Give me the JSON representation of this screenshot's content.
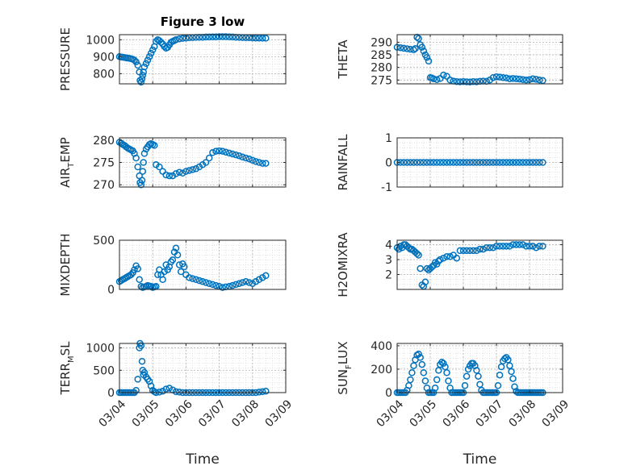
{
  "chart_data": [
    {
      "type": "scatter",
      "id": "pressure",
      "title": "Figure 3 low",
      "ylabel": "PRESSURE",
      "ylim": [
        740,
        1030
      ],
      "yticks": [
        800,
        900,
        1000
      ],
      "x": [
        0.0,
        0.05,
        0.1,
        0.15,
        0.2,
        0.25,
        0.3,
        0.35,
        0.4,
        0.45,
        0.5,
        0.55,
        0.6,
        0.62,
        0.65,
        0.68,
        0.7,
        0.72,
        0.75,
        0.8,
        0.85,
        0.9,
        0.95,
        1.0,
        1.05,
        1.1,
        1.15,
        1.2,
        1.25,
        1.3,
        1.35,
        1.4,
        1.45,
        1.5,
        1.55,
        1.6,
        1.65,
        1.7,
        1.8,
        1.9,
        2.0,
        2.1,
        2.2,
        2.3,
        2.4,
        2.5,
        2.6,
        2.7,
        2.8,
        2.9,
        3.0,
        3.1,
        3.2,
        3.3,
        3.4,
        3.5,
        3.6,
        3.7,
        3.8,
        3.9,
        4.0,
        4.1,
        4.2,
        4.3,
        4.4
      ],
      "y": [
        900,
        898,
        897,
        895,
        893,
        892,
        890,
        888,
        885,
        880,
        870,
        850,
        810,
        760,
        750,
        770,
        790,
        810,
        840,
        860,
        880,
        900,
        920,
        940,
        960,
        990,
        1000,
        995,
        985,
        975,
        960,
        950,
        955,
        970,
        985,
        990,
        995,
        1000,
        1005,
        1008,
        1010,
        1012,
        1013,
        1014,
        1015,
        1015,
        1016,
        1016,
        1017,
        1017,
        1018,
        1018,
        1018,
        1017,
        1016,
        1015,
        1014,
        1013,
        1012,
        1012,
        1011,
        1010,
        1010,
        1009,
        1009
      ]
    },
    {
      "type": "scatter",
      "id": "theta",
      "ylabel": "THETA",
      "ylim": [
        273.5,
        293
      ],
      "yticks": [
        275,
        280,
        285,
        290
      ],
      "x": [
        0.0,
        0.1,
        0.2,
        0.3,
        0.4,
        0.5,
        0.55,
        0.6,
        0.65,
        0.7,
        0.75,
        0.8,
        0.85,
        0.9,
        0.95,
        1.0,
        1.05,
        1.1,
        1.2,
        1.3,
        1.4,
        1.5,
        1.6,
        1.7,
        1.8,
        1.9,
        2.0,
        2.1,
        2.2,
        2.3,
        2.4,
        2.5,
        2.6,
        2.7,
        2.8,
        2.9,
        3.0,
        3.1,
        3.2,
        3.3,
        3.4,
        3.5,
        3.6,
        3.7,
        3.8,
        3.9,
        4.0,
        4.1,
        4.2,
        4.3,
        4.4
      ],
      "y": [
        288,
        287.8,
        287.6,
        287.4,
        287.2,
        287,
        287.5,
        292,
        291.5,
        289,
        288,
        286.5,
        285,
        284,
        282.5,
        276,
        275.8,
        275.5,
        275.2,
        275.6,
        277,
        276.5,
        275,
        274.6,
        274.4,
        274.3,
        274.4,
        274.3,
        274.2,
        274.4,
        274.3,
        274.5,
        274.6,
        274.5,
        275,
        276,
        276.3,
        276.2,
        276,
        275.8,
        275.5,
        275.6,
        275.5,
        275.4,
        275.2,
        275,
        275.2,
        275.5,
        275.3,
        275,
        274.8
      ]
    },
    {
      "type": "scatter",
      "id": "air_temp",
      "ylabel": "AIR",
      "ylabel_sub": "T",
      "ylabel_suffix": "EMP",
      "ylim": [
        269.5,
        280.5
      ],
      "yticks": [
        270,
        275,
        280
      ],
      "x": [
        0.0,
        0.05,
        0.1,
        0.15,
        0.2,
        0.25,
        0.3,
        0.35,
        0.4,
        0.45,
        0.5,
        0.55,
        0.6,
        0.62,
        0.65,
        0.68,
        0.7,
        0.72,
        0.75,
        0.8,
        0.85,
        0.9,
        0.95,
        1.0,
        1.05,
        1.1,
        1.2,
        1.3,
        1.4,
        1.5,
        1.6,
        1.7,
        1.8,
        1.9,
        2.0,
        2.1,
        2.2,
        2.3,
        2.4,
        2.5,
        2.6,
        2.7,
        2.8,
        2.9,
        3.0,
        3.1,
        3.2,
        3.3,
        3.4,
        3.5,
        3.6,
        3.7,
        3.8,
        3.9,
        4.0,
        4.1,
        4.2,
        4.3,
        4.4
      ],
      "y": [
        279.5,
        279.3,
        279,
        278.8,
        278.5,
        278.2,
        278,
        277.8,
        277.6,
        277,
        276,
        274,
        272,
        270.5,
        270,
        271,
        273,
        275,
        277,
        278,
        278.5,
        279,
        279.2,
        279,
        278.8,
        274.5,
        274,
        273,
        272.2,
        272,
        272,
        272.5,
        272.8,
        272.6,
        273,
        273.2,
        273.4,
        273.6,
        274,
        274.5,
        275,
        276,
        277.2,
        277.5,
        277.6,
        277.5,
        277.3,
        277.1,
        276.9,
        276.7,
        276.5,
        276.2,
        276,
        275.8,
        275.5,
        275.2,
        275,
        274.8,
        274.8
      ]
    },
    {
      "type": "scatter",
      "id": "rainfall",
      "ylabel": "RAINFALL",
      "ylim": [
        -1,
        1
      ],
      "yticks": [
        -1,
        0,
        1
      ],
      "x": [
        0,
        0.1,
        0.2,
        0.3,
        0.4,
        0.5,
        0.6,
        0.7,
        0.8,
        0.9,
        1.0,
        1.1,
        1.2,
        1.3,
        1.4,
        1.5,
        1.6,
        1.7,
        1.8,
        1.9,
        2.0,
        2.1,
        2.2,
        2.3,
        2.4,
        2.5,
        2.6,
        2.7,
        2.8,
        2.9,
        3.0,
        3.1,
        3.2,
        3.3,
        3.4,
        3.5,
        3.6,
        3.7,
        3.8,
        3.9,
        4.0,
        4.1,
        4.2,
        4.3,
        4.4
      ],
      "y": [
        0,
        0,
        0,
        0,
        0,
        0,
        0,
        0,
        0,
        0,
        0,
        0,
        0,
        0,
        0,
        0,
        0,
        0,
        0,
        0,
        0,
        0,
        0,
        0,
        0,
        0,
        0,
        0,
        0,
        0,
        0,
        0,
        0,
        0,
        0,
        0,
        0,
        0,
        0,
        0,
        0,
        0,
        0,
        0,
        0
      ]
    },
    {
      "type": "scatter",
      "id": "mixdepth",
      "ylabel": "MIXDEPTH",
      "ylim": [
        0,
        500
      ],
      "yticks": [
        0,
        500
      ],
      "x": [
        0.0,
        0.05,
        0.1,
        0.15,
        0.2,
        0.25,
        0.3,
        0.35,
        0.4,
        0.45,
        0.5,
        0.55,
        0.6,
        0.65,
        0.7,
        0.75,
        0.8,
        0.85,
        0.9,
        0.95,
        1.0,
        1.05,
        1.1,
        1.15,
        1.2,
        1.25,
        1.3,
        1.35,
        1.4,
        1.45,
        1.5,
        1.55,
        1.6,
        1.65,
        1.7,
        1.75,
        1.8,
        1.85,
        1.9,
        1.95,
        2.0,
        2.1,
        2.2,
        2.3,
        2.4,
        2.5,
        2.6,
        2.7,
        2.8,
        2.9,
        3.0,
        3.1,
        3.2,
        3.3,
        3.4,
        3.5,
        3.6,
        3.7,
        3.8,
        3.9,
        4.0,
        4.1,
        4.2,
        4.3,
        4.4
      ],
      "y": [
        80,
        90,
        100,
        110,
        120,
        130,
        140,
        150,
        170,
        200,
        240,
        210,
        100,
        30,
        20,
        25,
        30,
        40,
        35,
        30,
        20,
        25,
        30,
        150,
        200,
        150,
        100,
        180,
        250,
        200,
        230,
        280,
        300,
        380,
        420,
        350,
        250,
        180,
        260,
        230,
        150,
        120,
        110,
        100,
        90,
        80,
        70,
        60,
        50,
        40,
        30,
        20,
        25,
        30,
        40,
        50,
        60,
        70,
        80,
        70,
        60,
        80,
        100,
        120,
        140
      ]
    },
    {
      "type": "scatter",
      "id": "h2omixra",
      "ylabel": "H2OMIXRA",
      "ylim": [
        1,
        4.3
      ],
      "yticks": [
        2,
        3,
        4
      ],
      "x": [
        0.0,
        0.05,
        0.1,
        0.15,
        0.2,
        0.25,
        0.3,
        0.35,
        0.4,
        0.45,
        0.5,
        0.55,
        0.6,
        0.65,
        0.7,
        0.75,
        0.8,
        0.85,
        0.9,
        0.95,
        1.0,
        1.05,
        1.1,
        1.15,
        1.2,
        1.25,
        1.3,
        1.4,
        1.5,
        1.6,
        1.7,
        1.8,
        1.9,
        2.0,
        2.1,
        2.2,
        2.3,
        2.4,
        2.5,
        2.6,
        2.7,
        2.8,
        2.9,
        3.0,
        3.1,
        3.2,
        3.3,
        3.4,
        3.5,
        3.6,
        3.7,
        3.8,
        3.9,
        4.0,
        4.1,
        4.2,
        4.3,
        4.4
      ],
      "y": [
        3.8,
        3.7,
        3.9,
        3.8,
        4.0,
        4.0,
        3.9,
        3.8,
        3.7,
        3.7,
        3.6,
        3.5,
        3.4,
        3.3,
        2.4,
        1.3,
        1.2,
        1.5,
        2.4,
        2.3,
        2.4,
        2.5,
        2.6,
        2.8,
        2.7,
        2.9,
        3.0,
        3.1,
        3.2,
        3.2,
        3.3,
        3.1,
        3.6,
        3.6,
        3.6,
        3.6,
        3.6,
        3.6,
        3.7,
        3.7,
        3.8,
        3.8,
        3.8,
        3.9,
        3.9,
        3.9,
        3.9,
        3.9,
        4.0,
        4.0,
        4.0,
        4.0,
        3.9,
        3.9,
        3.9,
        3.8,
        3.9,
        3.9
      ]
    },
    {
      "type": "scatter",
      "id": "terr_msl",
      "ylabel": "TERR",
      "ylabel_sub": "M",
      "ylabel_suffix": "SL",
      "xlabel": "Time",
      "ylim": [
        0,
        1100
      ],
      "yticks": [
        0,
        500,
        1000
      ],
      "xticklabels": [
        "03/04",
        "03/05",
        "03/06",
        "03/07",
        "03/08",
        "03/09"
      ],
      "x": [
        0.0,
        0.05,
        0.1,
        0.15,
        0.2,
        0.25,
        0.3,
        0.35,
        0.4,
        0.45,
        0.5,
        0.55,
        0.6,
        0.62,
        0.65,
        0.68,
        0.7,
        0.72,
        0.75,
        0.8,
        0.85,
        0.9,
        0.95,
        1.0,
        1.05,
        1.1,
        1.2,
        1.3,
        1.4,
        1.5,
        1.6,
        1.7,
        1.8,
        1.9,
        2.0,
        2.1,
        2.2,
        2.3,
        2.4,
        2.5,
        2.6,
        2.7,
        2.8,
        2.9,
        3.0,
        3.1,
        3.2,
        3.3,
        3.4,
        3.5,
        3.6,
        3.7,
        3.8,
        3.9,
        4.0,
        4.1,
        4.2,
        4.3,
        4.4
      ],
      "y": [
        0,
        0,
        0,
        0,
        0,
        0,
        0,
        0,
        0,
        0,
        50,
        300,
        1000,
        1100,
        1050,
        700,
        500,
        400,
        450,
        350,
        300,
        250,
        150,
        50,
        20,
        0,
        10,
        30,
        80,
        100,
        60,
        20,
        10,
        0,
        0,
        0,
        0,
        0,
        0,
        0,
        0,
        0,
        0,
        0,
        0,
        0,
        0,
        0,
        0,
        0,
        0,
        0,
        0,
        0,
        0,
        0,
        10,
        20,
        30
      ]
    },
    {
      "type": "scatter",
      "id": "sun_flux",
      "ylabel": "SUN",
      "ylabel_sub": "F",
      "ylabel_suffix": "LUX",
      "xlabel": "Time",
      "ylim": [
        0,
        420
      ],
      "yticks": [
        0,
        200,
        400
      ],
      "xticklabels": [
        "03/04",
        "03/05",
        "03/06",
        "03/07",
        "03/08",
        "03/09"
      ],
      "x": [
        0.0,
        0.05,
        0.1,
        0.15,
        0.2,
        0.25,
        0.3,
        0.35,
        0.4,
        0.45,
        0.5,
        0.55,
        0.6,
        0.65,
        0.7,
        0.75,
        0.8,
        0.85,
        0.9,
        0.95,
        1.0,
        1.05,
        1.1,
        1.15,
        1.2,
        1.25,
        1.3,
        1.35,
        1.4,
        1.45,
        1.5,
        1.55,
        1.6,
        1.65,
        1.7,
        1.75,
        1.8,
        1.85,
        1.9,
        1.95,
        2.0,
        2.05,
        2.1,
        2.15,
        2.2,
        2.25,
        2.3,
        2.35,
        2.4,
        2.45,
        2.5,
        2.55,
        2.6,
        2.65,
        2.7,
        2.75,
        2.8,
        2.85,
        2.9,
        2.95,
        3.0,
        3.05,
        3.1,
        3.15,
        3.2,
        3.25,
        3.3,
        3.35,
        3.4,
        3.45,
        3.5,
        3.55,
        3.6,
        3.65,
        3.7,
        3.75,
        3.8,
        3.85,
        3.9,
        3.95,
        4.0,
        4.05,
        4.1,
        4.15,
        4.2,
        4.25,
        4.3,
        4.35,
        4.4
      ],
      "y": [
        0,
        0,
        0,
        0,
        0,
        0,
        20,
        60,
        110,
        170,
        230,
        280,
        320,
        330,
        300,
        240,
        170,
        100,
        40,
        0,
        0,
        0,
        0,
        40,
        110,
        190,
        240,
        260,
        250,
        220,
        170,
        100,
        40,
        0,
        0,
        0,
        0,
        0,
        0,
        0,
        0,
        60,
        140,
        200,
        230,
        250,
        250,
        230,
        190,
        140,
        70,
        20,
        0,
        0,
        0,
        0,
        0,
        0,
        0,
        0,
        0,
        60,
        150,
        220,
        270,
        290,
        300,
        280,
        230,
        180,
        120,
        50,
        10,
        0,
        0,
        0,
        0,
        0,
        0,
        0,
        0,
        0,
        0,
        0,
        0,
        0,
        0,
        0,
        0
      ]
    }
  ],
  "x_range": [
    0,
    5
  ],
  "colors": {
    "marker": "#0072BD",
    "axis": "#262626",
    "grid": "#cfcfcf"
  }
}
